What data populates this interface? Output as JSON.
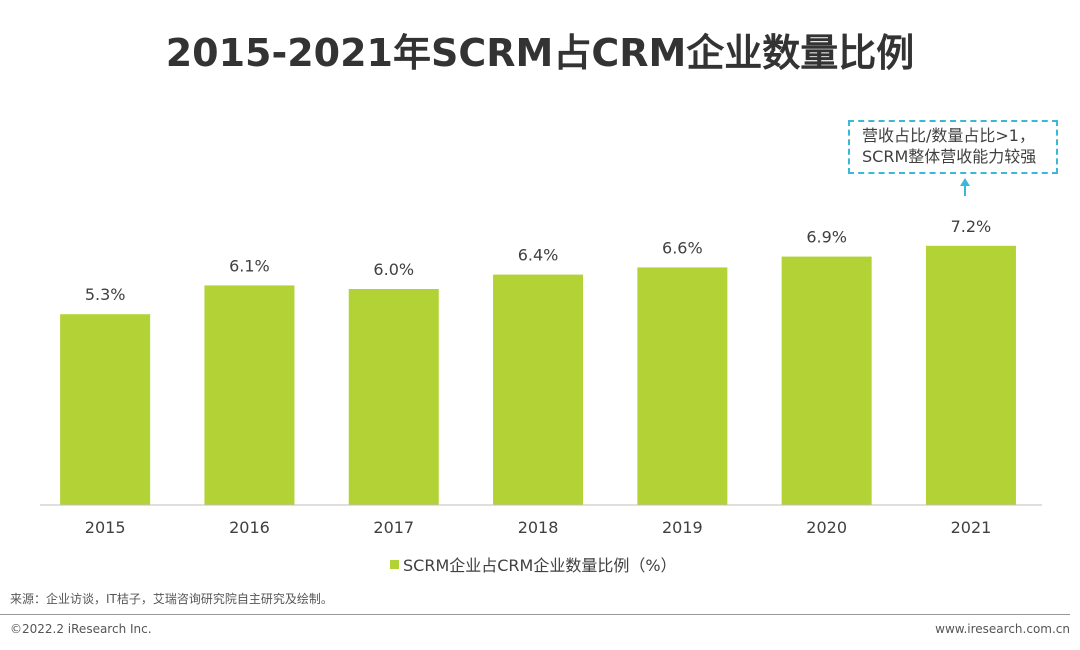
{
  "chart_data": {
    "type": "bar",
    "title": "2015-2021年SCRM占CRM企业数量比例",
    "categories": [
      "2015",
      "2016",
      "2017",
      "2018",
      "2019",
      "2020",
      "2021"
    ],
    "series": [
      {
        "name": "SCRM企业占CRM企业数量比例（%）",
        "values": [
          5.3,
          6.1,
          6.0,
          6.4,
          6.6,
          6.9,
          7.2
        ]
      }
    ],
    "labels": [
      "5.3%",
      "6.1%",
      "6.0%",
      "6.4%",
      "6.6%",
      "6.9%",
      "7.2%"
    ],
    "ylim": [
      0,
      8
    ],
    "grid": false,
    "legend_placement": "bottom",
    "bar_color": "#b2d235",
    "annotation": {
      "line1": "营收占比/数量占比>1，",
      "line2": "SCRM整体营收能力较强",
      "color": "#3bb7d8"
    }
  },
  "footer": {
    "source": "来源：企业访谈，IT桔子，艾瑞咨询研究院自主研究及绘制。",
    "copyright": "©2022.2 iResearch Inc.",
    "url": "www.iresearch.com.cn"
  }
}
